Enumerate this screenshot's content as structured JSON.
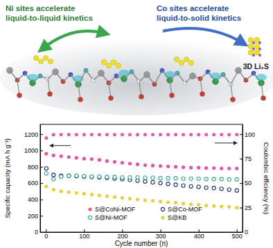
{
  "illustration": {
    "ni_label": [
      "Ni sites accelerate",
      "liquid-to-liquid kinetics"
    ],
    "co_label": [
      "Co sites accelerate",
      "liquid-to-solid kinetics"
    ],
    "product_label": "3D Li₂S"
  },
  "chart_data": {
    "type": "scatter",
    "xlabel": "Cycle number (n)",
    "ylabel": "Specific capacity (mA h g⁻¹)",
    "y2label": "Coulombic efficiency (%)",
    "x": [
      1,
      20,
      40,
      60,
      80,
      100,
      120,
      140,
      160,
      180,
      200,
      220,
      240,
      260,
      280,
      300,
      320,
      340,
      360,
      380,
      400,
      420,
      440,
      460,
      480,
      500
    ],
    "xlim": [
      -15,
      515
    ],
    "xticks": [
      0,
      100,
      200,
      300,
      400,
      500
    ],
    "ylim": [
      0,
      1320
    ],
    "yticks": [
      0,
      200,
      400,
      600,
      800,
      1000,
      1200
    ],
    "y2lim": [
      0,
      110
    ],
    "y2ticks": [
      0,
      25,
      50,
      75,
      100
    ],
    "legend": "bottom",
    "series": [
      {
        "name": "S@CoNi-MOF",
        "color": "#e8559b",
        "marker": "circle",
        "line_style": "none",
        "values": [
          960,
          940,
          930,
          920,
          910,
          900,
          895,
          885,
          870,
          860,
          850,
          840,
          830,
          820,
          815,
          810,
          805,
          800,
          795,
          790,
          790,
          785,
          785,
          780,
          780,
          780
        ]
      },
      {
        "name": "S@Co-MOF",
        "color": "#1c2f7a",
        "marker": "circle-open",
        "line_style": "none",
        "values": [
          780,
          700,
          690,
          690,
          685,
          680,
          675,
          670,
          665,
          655,
          650,
          640,
          630,
          620,
          610,
          600,
          590,
          580,
          570,
          560,
          555,
          545,
          540,
          530,
          520,
          510
        ]
      },
      {
        "name": "S@Ni-MOF",
        "color": "#3aa88e",
        "marker": "circle-open",
        "line_style": "none",
        "values": [
          720,
          650,
          680,
          690,
          690,
          685,
          680,
          680,
          675,
          675,
          670,
          670,
          670,
          665,
          665,
          660,
          660,
          660,
          655,
          655,
          655,
          650,
          650,
          650,
          645,
          645
        ]
      },
      {
        "name": "S@KB",
        "color": "#e8d23a",
        "marker": "circle",
        "line_style": "none",
        "values": [
          560,
          520,
          500,
          490,
          480,
          470,
          460,
          450,
          440,
          430,
          420,
          410,
          400,
          390,
          385,
          375,
          365,
          360,
          350,
          340,
          335,
          325,
          320,
          315,
          310,
          300
        ]
      },
      {
        "color": "#e8559b",
        "marker": "square",
        "line_style": "none",
        "axis": "y2",
        "values": [
          96,
          99.5,
          99.5,
          99.5,
          99.5,
          99.5,
          99.5,
          99.5,
          99.5,
          99.5,
          99.5,
          99.5,
          99.5,
          99.5,
          99.5,
          99.5,
          99.5,
          99.5,
          99.5,
          99.5,
          99.5,
          99.5,
          99.5,
          99.5,
          99.5,
          99.5
        ]
      }
    ]
  }
}
